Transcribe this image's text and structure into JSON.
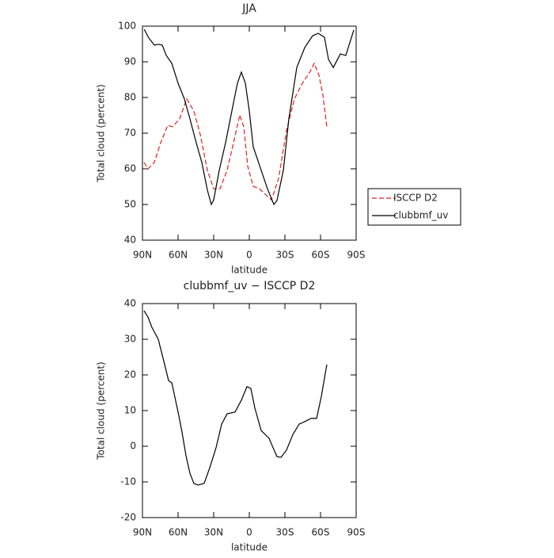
{
  "chart_data": [
    {
      "type": "line",
      "title": "JJA",
      "xlabel": "latitude",
      "ylabel": "Total cloud (percent)",
      "xlim": [
        90,
        -90
      ],
      "ylim": [
        40,
        100
      ],
      "xticks": [
        {
          "value": 90,
          "label": "90N"
        },
        {
          "value": 60,
          "label": "60N"
        },
        {
          "value": 30,
          "label": "30N"
        },
        0,
        {
          "value": -30,
          "label": "30S"
        },
        {
          "value": -60,
          "label": "60S"
        },
        {
          "value": -90,
          "label": "90S"
        }
      ],
      "yticks": [
        40,
        50,
        60,
        70,
        80,
        90,
        100
      ],
      "legend": "right",
      "series": [
        {
          "name": "ISCCP D2",
          "color": "#e02020",
          "line_style": "dashed",
          "x": [
            88.7,
            85.3,
            80,
            74.7,
            68.7,
            64.7,
            58.7,
            52.7,
            46.7,
            41.3,
            35.3,
            30,
            24.7,
            18.7,
            13.3,
            8,
            4.7,
            1.3,
            -3.3,
            -8.7,
            -13.3,
            -18.7,
            -24.7,
            -31.3,
            -38,
            -44.7,
            -51.3,
            -54.7,
            -58.7,
            -62,
            -65.3
          ],
          "values": [
            61.8,
            60,
            61.8,
            67.3,
            72.2,
            71.8,
            74,
            79.6,
            76.2,
            69.6,
            59.6,
            54.4,
            54.4,
            59.6,
            67.3,
            75.1,
            71.8,
            60.7,
            55.1,
            54.4,
            52.9,
            51.3,
            57.3,
            70.7,
            79.6,
            84,
            87.3,
            89.6,
            86.2,
            80.7,
            71.8
          ]
        },
        {
          "name": "clubbmf_uv",
          "color": "#000000",
          "line_style": "solid",
          "x": [
            88.5,
            84.7,
            80,
            76.7,
            73.3,
            70,
            65.3,
            60,
            54.7,
            50,
            44.7,
            40,
            35.3,
            32,
            30,
            25.3,
            20,
            14.7,
            10,
            6.7,
            3.3,
            0,
            -3.3,
            -10,
            -15.3,
            -20.7,
            -23.3,
            -28.7,
            -33.3,
            -40,
            -46.7,
            -53.3,
            -58,
            -63.3,
            -66.7,
            -70.7,
            -76.7,
            -81.3,
            -88
          ],
          "values": [
            99.1,
            96.7,
            94.7,
            94.9,
            94.7,
            91.8,
            89.6,
            84,
            79.6,
            74,
            67.3,
            61.8,
            54,
            50,
            51.3,
            59.6,
            67.3,
            76.2,
            84,
            87.1,
            84,
            76.2,
            66.2,
            59.6,
            54.4,
            50,
            51.1,
            59.6,
            74,
            88.4,
            94,
            97.3,
            98,
            96.9,
            90.7,
            88.4,
            92.2,
            91.8,
            98.9
          ]
        }
      ]
    },
    {
      "type": "line",
      "title": "clubbmf_uv − ISCCP D2",
      "xlabel": "latitude",
      "ylabel": "Total cloud (percent)",
      "xlim": [
        90,
        -90
      ],
      "ylim": [
        -20,
        40
      ],
      "xticks": [
        {
          "value": 90,
          "label": "90N"
        },
        {
          "value": 60,
          "label": "60N"
        },
        {
          "value": 30,
          "label": "30N"
        },
        0,
        {
          "value": -30,
          "label": "30S"
        },
        {
          "value": -60,
          "label": "60S"
        },
        {
          "value": -90,
          "label": "90S"
        }
      ],
      "yticks": [
        -20,
        -10,
        0,
        10,
        20,
        30,
        40
      ],
      "series": [
        {
          "color": "#000000",
          "line_style": "solid",
          "x": [
            88.7,
            85.3,
            82,
            76.7,
            71.3,
            68,
            65.3,
            60,
            56.7,
            53.3,
            50,
            46.7,
            43.3,
            38,
            33.3,
            28,
            23.3,
            18.7,
            12,
            6.7,
            2,
            -1.3,
            -4.7,
            -10,
            -16.7,
            -20,
            -23.3,
            -26.7,
            -31.3,
            -36.7,
            -42,
            -46.7,
            -52,
            -56.7,
            -60.7,
            -65.3
          ],
          "values": [
            38,
            36.2,
            33.3,
            30,
            22.9,
            18.4,
            17.8,
            9.6,
            4,
            -2.7,
            -7.6,
            -10.4,
            -10.9,
            -10.4,
            -6,
            -0.4,
            6.2,
            9.1,
            9.6,
            12.9,
            16.7,
            16.2,
            10.7,
            4.4,
            2.2,
            -0.4,
            -2.9,
            -3.1,
            -1.1,
            3.3,
            6.2,
            6.9,
            7.8,
            7.8,
            14,
            22.9
          ]
        }
      ]
    }
  ]
}
